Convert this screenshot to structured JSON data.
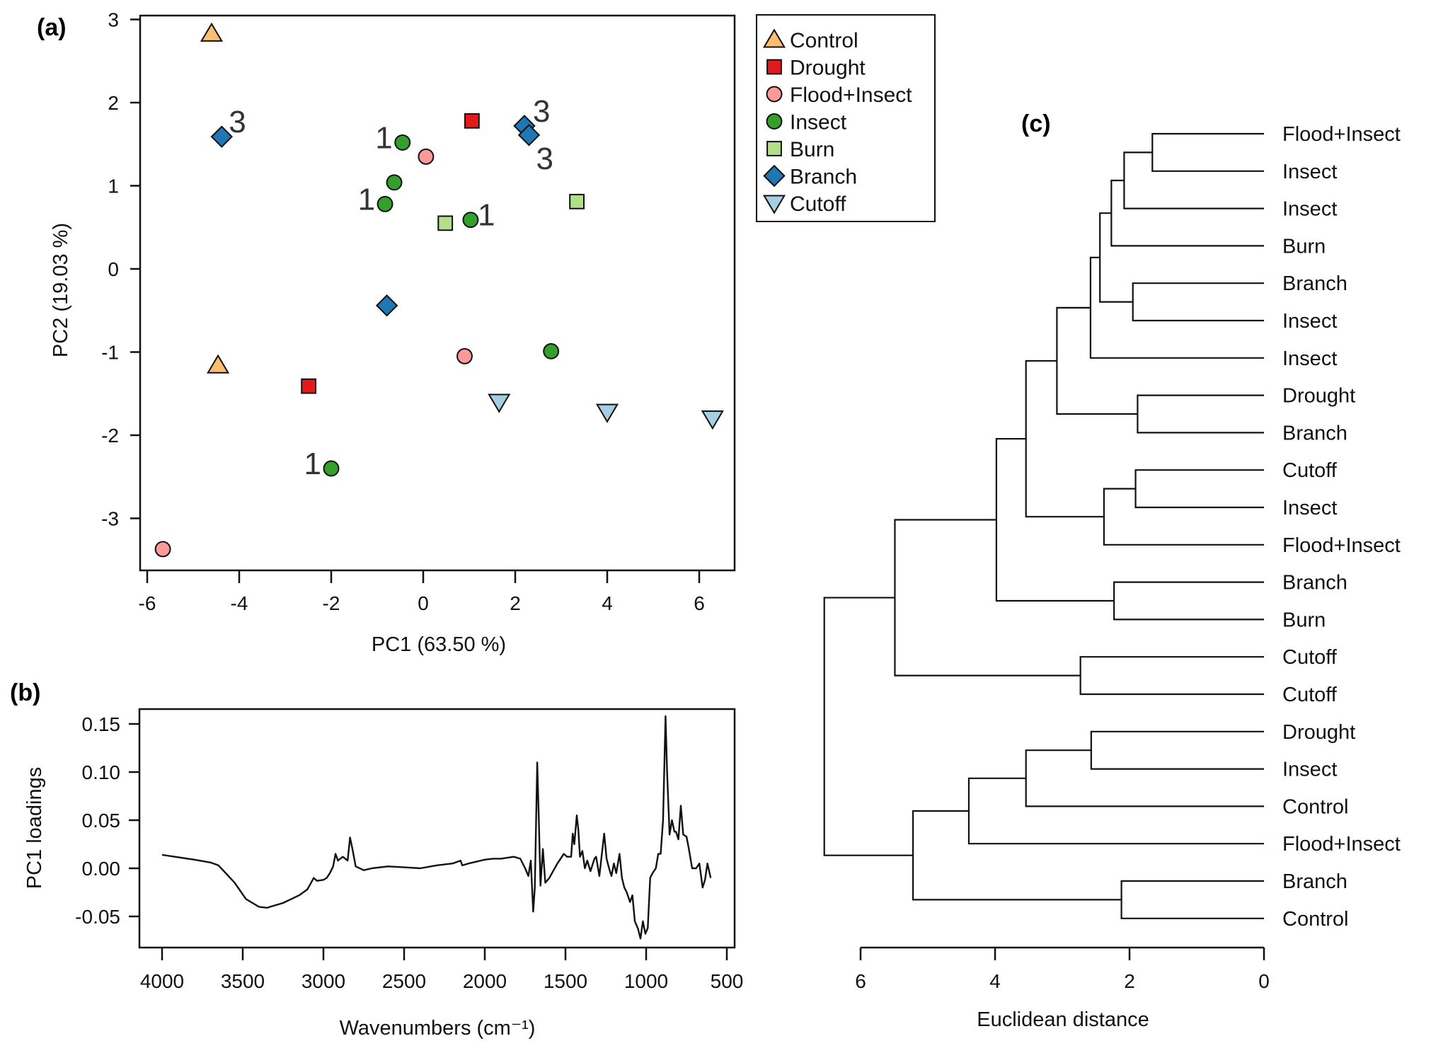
{
  "chart_data": [
    {
      "panel": "(a)",
      "type": "scatter",
      "title": "",
      "xlabel": "PC1 (63.50 %)",
      "ylabel": "PC2 (19.03 %)",
      "xlim": [
        -6.2,
        6.8
      ],
      "ylim": [
        -3.7,
        3.05
      ],
      "xticks": [
        -6,
        -4,
        -2,
        0,
        2,
        4,
        6
      ],
      "yticks": [
        3,
        2,
        1,
        0,
        -1,
        -2,
        -3
      ],
      "grid": false,
      "legend_position": "outside-right",
      "series": [
        {
          "name": "Control",
          "marker": "triangle-up",
          "color": "#fdbf6f",
          "points": [
            {
              "x": -4.6,
              "y": 2.83
            },
            {
              "x": -4.46,
              "y": -1.16
            }
          ]
        },
        {
          "name": "Drought",
          "marker": "square",
          "color": "#e31a1c",
          "points": [
            {
              "x": 1.06,
              "y": 1.78
            },
            {
              "x": -2.49,
              "y": -1.41
            }
          ]
        },
        {
          "name": "Flood+Insect",
          "marker": "circle",
          "color": "#fb9a99",
          "points": [
            {
              "x": 0.06,
              "y": 1.35
            },
            {
              "x": 0.9,
              "y": -1.05
            },
            {
              "x": -5.66,
              "y": -3.37
            }
          ]
        },
        {
          "name": "Insect",
          "marker": "circle",
          "color": "#33a02c",
          "points": [
            {
              "x": -0.45,
              "y": 1.52,
              "label": "1"
            },
            {
              "x": -0.63,
              "y": 1.04
            },
            {
              "x": -0.83,
              "y": 0.78,
              "label": "1"
            },
            {
              "x": 1.03,
              "y": 0.59,
              "label": "1"
            },
            {
              "x": 2.78,
              "y": -0.99
            },
            {
              "x": -2.0,
              "y": -2.4,
              "label": "1"
            }
          ]
        },
        {
          "name": "Burn",
          "marker": "square",
          "color": "#b2df8a",
          "points": [
            {
              "x": 0.48,
              "y": 0.55
            },
            {
              "x": 3.34,
              "y": 0.81
            }
          ]
        },
        {
          "name": "Branch",
          "marker": "diamond",
          "color": "#1f78b4",
          "points": [
            {
              "x": -4.38,
              "y": 1.59,
              "label": "3"
            },
            {
              "x": 2.2,
              "y": 1.72,
              "label": "3"
            },
            {
              "x": 2.3,
              "y": 1.61,
              "label": "3"
            },
            {
              "x": -0.79,
              "y": -0.44
            }
          ]
        },
        {
          "name": "Cutoff",
          "marker": "triangle-down",
          "color": "#a6cee3",
          "points": [
            {
              "x": 1.65,
              "y": -1.6
            },
            {
              "x": 4.0,
              "y": -1.72
            },
            {
              "x": 6.29,
              "y": -1.8
            }
          ]
        }
      ]
    },
    {
      "panel": "(b)",
      "type": "line",
      "title": "",
      "xlabel": "Wavenumbers (cm⁻¹)",
      "ylabel": "PC1 loadings",
      "xlim": [
        4000,
        500
      ],
      "ylim": [
        -0.08,
        0.165
      ],
      "xticks": [
        4000,
        3500,
        3000,
        2500,
        2000,
        1500,
        1000,
        500
      ],
      "yticks": [
        0.15,
        0.1,
        0.05,
        0.0,
        -0.05
      ],
      "ytick_labels": [
        "0.15",
        "0.10",
        "0.05",
        "0.00",
        "-0.05"
      ],
      "grid": false,
      "series": [
        {
          "name": "PC1 loadings",
          "x": [
            4000,
            3800,
            3700,
            3650,
            3550,
            3480,
            3400,
            3350,
            3250,
            3150,
            3100,
            3080,
            3060,
            3040,
            3000,
            2980,
            2960,
            2940,
            2925,
            2910,
            2880,
            2850,
            2835,
            2820,
            2800,
            2750,
            2700,
            2600,
            2500,
            2400,
            2300,
            2200,
            2150,
            2140,
            2100,
            2000,
            1950,
            1900,
            1820,
            1780,
            1750,
            1730,
            1715,
            1700,
            1690,
            1675,
            1665,
            1655,
            1640,
            1625,
            1600,
            1550,
            1510,
            1490,
            1465,
            1455,
            1445,
            1430,
            1420,
            1410,
            1395,
            1380,
            1365,
            1345,
            1320,
            1310,
            1290,
            1260,
            1245,
            1230,
            1215,
            1200,
            1185,
            1165,
            1150,
            1135,
            1120,
            1100,
            1085,
            1070,
            1050,
            1035,
            1020,
            1005,
            990,
            975,
            960,
            940,
            925,
            910,
            895,
            880,
            870,
            855,
            840,
            825,
            815,
            800,
            785,
            770,
            750,
            735,
            715,
            690,
            670,
            650,
            635,
            620,
            600
          ],
          "y": [
            0.014,
            0.009,
            0.006,
            0.003,
            -0.015,
            -0.032,
            -0.04,
            -0.041,
            -0.036,
            -0.028,
            -0.022,
            -0.016,
            -0.01,
            -0.013,
            -0.012,
            -0.01,
            -0.005,
            0.002,
            0.015,
            0.008,
            0.012,
            0.008,
            0.032,
            0.02,
            0.002,
            -0.002,
            0.0,
            0.002,
            0.001,
            0.0,
            0.003,
            0.005,
            0.008,
            0.003,
            0.005,
            0.009,
            0.01,
            0.01,
            0.012,
            0.01,
            0.0,
            -0.008,
            0.008,
            -0.045,
            -0.02,
            0.11,
            0.05,
            -0.018,
            0.02,
            -0.015,
            -0.01,
            0.005,
            0.015,
            0.012,
            0.012,
            0.036,
            0.025,
            0.055,
            0.04,
            0.012,
            0.018,
            0.0,
            0.008,
            -0.003,
            0.01,
            0.012,
            -0.008,
            0.036,
            0.01,
            0.0,
            -0.008,
            0.005,
            -0.005,
            0.015,
            -0.01,
            -0.02,
            -0.025,
            -0.035,
            -0.028,
            -0.055,
            -0.063,
            -0.073,
            -0.055,
            -0.068,
            -0.062,
            -0.01,
            -0.005,
            0.0,
            0.015,
            0.015,
            0.05,
            0.158,
            0.1,
            0.035,
            0.05,
            0.038,
            0.038,
            0.03,
            0.065,
            0.035,
            0.033,
            0.02,
            0.0,
            0.0,
            0.005,
            -0.02,
            -0.012,
            0.005,
            -0.01
          ]
        }
      ]
    },
    {
      "panel": "(c)",
      "type": "dendrogram",
      "title": "",
      "xlabel": "Euclidean distance",
      "ylabel": "",
      "xlim": [
        6,
        0
      ],
      "xticks": [
        6,
        4,
        2,
        0
      ],
      "grid": false,
      "leaves": [
        "Flood+Insect",
        "Insect",
        "Insect",
        "Burn",
        "Branch",
        "Insect",
        "Insect",
        "Drought",
        "Branch",
        "Cutoff",
        "Insect",
        "Flood+Insect",
        "Branch",
        "Burn",
        "Cutoff",
        "Cutoff",
        "Drought",
        "Insect",
        "Control",
        "Flood+Insect",
        "Branch",
        "Control"
      ],
      "merges": [
        {
          "id": "m1",
          "a": "L0",
          "b": "L1",
          "height": 1.66
        },
        {
          "id": "m2",
          "a": "m1",
          "b": "L2",
          "height": 2.08
        },
        {
          "id": "m3",
          "a": "m2",
          "b": "L3",
          "height": 2.27
        },
        {
          "id": "m4",
          "a": "L4",
          "b": "L5",
          "height": 1.95
        },
        {
          "id": "m5",
          "a": "m3",
          "b": "m4",
          "height": 2.44
        },
        {
          "id": "m6",
          "a": "m5",
          "b": "L6",
          "height": 2.58
        },
        {
          "id": "m7",
          "a": "L7",
          "b": "L8",
          "height": 1.88
        },
        {
          "id": "m8",
          "a": "m6",
          "b": "m7",
          "height": 3.08
        },
        {
          "id": "m9",
          "a": "L9",
          "b": "L10",
          "height": 1.91
        },
        {
          "id": "m10",
          "a": "m9",
          "b": "L11",
          "height": 2.38
        },
        {
          "id": "m11",
          "a": "m8",
          "b": "m10",
          "height": 3.54
        },
        {
          "id": "m12",
          "a": "L12",
          "b": "L13",
          "height": 2.23
        },
        {
          "id": "m13",
          "a": "m11",
          "b": "m12",
          "height": 3.98
        },
        {
          "id": "m14",
          "a": "L14",
          "b": "L15",
          "height": 2.73
        },
        {
          "id": "m15",
          "a": "m13",
          "b": "m14",
          "height": 5.49
        },
        {
          "id": "m16",
          "a": "L16",
          "b": "L17",
          "height": 2.57
        },
        {
          "id": "m17",
          "a": "m16",
          "b": "L18",
          "height": 3.54
        },
        {
          "id": "m18",
          "a": "m17",
          "b": "L19",
          "height": 4.39
        },
        {
          "id": "m19",
          "a": "L20",
          "b": "L21",
          "height": 2.12
        },
        {
          "id": "m20",
          "a": "m18",
          "b": "m19",
          "height": 5.22
        },
        {
          "id": "m21",
          "a": "m15",
          "b": "m20",
          "height": 6.54
        }
      ]
    }
  ],
  "panel_labels": {
    "a": "(a)",
    "b": "(b)",
    "c": "(c)"
  }
}
